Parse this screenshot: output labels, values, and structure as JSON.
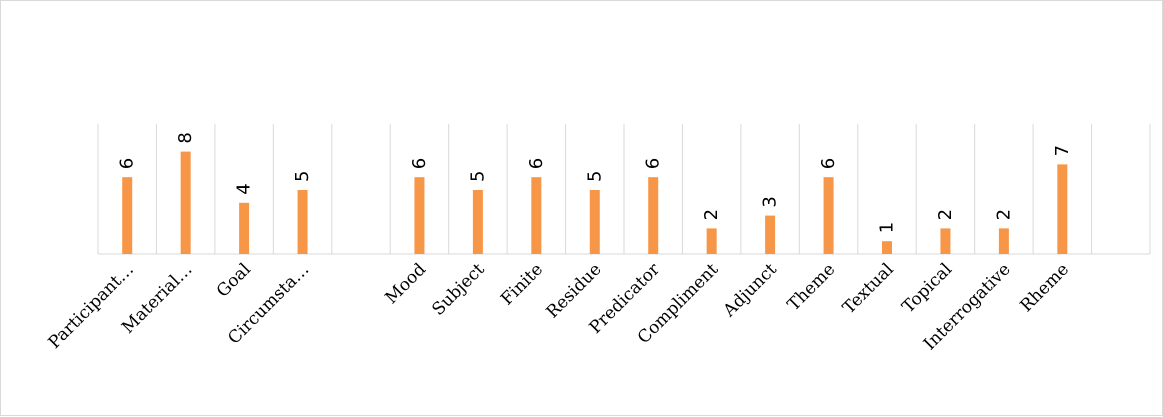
{
  "chart_data": {
    "type": "bar",
    "title": "",
    "xlabel": "",
    "ylabel": "",
    "categories": [
      "Participant…",
      "Material…",
      "Goal",
      "Circumsta…",
      "",
      "Mood",
      "Subject",
      "Finite",
      "Residue",
      "Predicator",
      "Compliment",
      "Adjunct",
      "Theme",
      "Textual",
      "Topical",
      "Interrogative",
      "Rheme",
      ""
    ],
    "values": [
      6,
      8,
      4,
      5,
      null,
      6,
      5,
      6,
      5,
      6,
      2,
      3,
      6,
      1,
      2,
      2,
      7,
      null
    ],
    "value_labels": [
      "6",
      "8",
      "4",
      "5",
      "",
      "6",
      "5",
      "6",
      "5",
      "6",
      "2",
      "3",
      "6",
      "1",
      "2",
      "2",
      "7",
      ""
    ],
    "ylim": [
      0,
      10
    ],
    "grid": "vertical",
    "legend": "none",
    "colors": {
      "bar": "#f79646",
      "grid": "#d9d9d9",
      "axis": "#d9d9d9"
    }
  }
}
